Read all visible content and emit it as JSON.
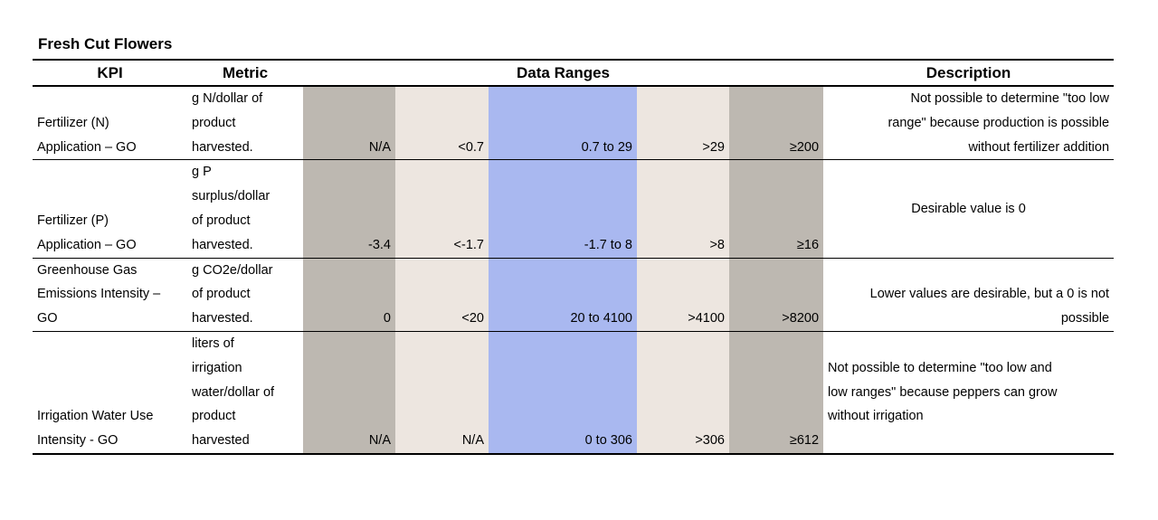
{
  "title": "Fresh Cut Flowers",
  "table": {
    "header": [
      "KPI",
      "Metric",
      "Data Ranges",
      "Description"
    ],
    "rows": [
      {
        "kpi": [
          "Fertilizer (N)",
          "Application – GO"
        ],
        "metric": [
          "g N/dollar of",
          "product",
          "harvested."
        ],
        "ranges": [
          "N/A",
          "<0.7",
          "0.7 to 29",
          ">29",
          "≥200"
        ],
        "description": [
          "Not possible to determine \"too low",
          "range\" because production is possible",
          "without fertilizer addition"
        ]
      },
      {
        "kpi": [
          "Fertilizer (P)",
          "Application – GO"
        ],
        "metric": [
          "g P",
          "surplus/dollar",
          "of product",
          "harvested."
        ],
        "ranges": [
          "-3.4",
          "<-1.7",
          "-1.7 to 8",
          ">8",
          "≥16"
        ],
        "description": [
          "Desirable value is 0"
        ]
      },
      {
        "kpi": [
          "Greenhouse Gas",
          "Emissions Intensity –",
          "GO"
        ],
        "metric": [
          "g CO2e/dollar",
          "of product",
          "harvested."
        ],
        "ranges": [
          "0",
          "<20",
          "20 to 4100",
          ">4100",
          ">8200"
        ],
        "description": [
          "Lower values are desirable, but a 0 is not",
          "possible"
        ]
      },
      {
        "kpi": [
          "Irrigation Water Use",
          "Intensity - GO"
        ],
        "metric": [
          "liters of",
          "irrigation",
          "water/dollar of",
          "product",
          "harvested"
        ],
        "ranges": [
          "N/A",
          "N/A",
          "0 to 306",
          ">306",
          "≥612"
        ],
        "description": [
          "Not possible to determine \"too low and",
          "low ranges\" because peppers can grow",
          "without irrigation"
        ]
      }
    ]
  }
}
